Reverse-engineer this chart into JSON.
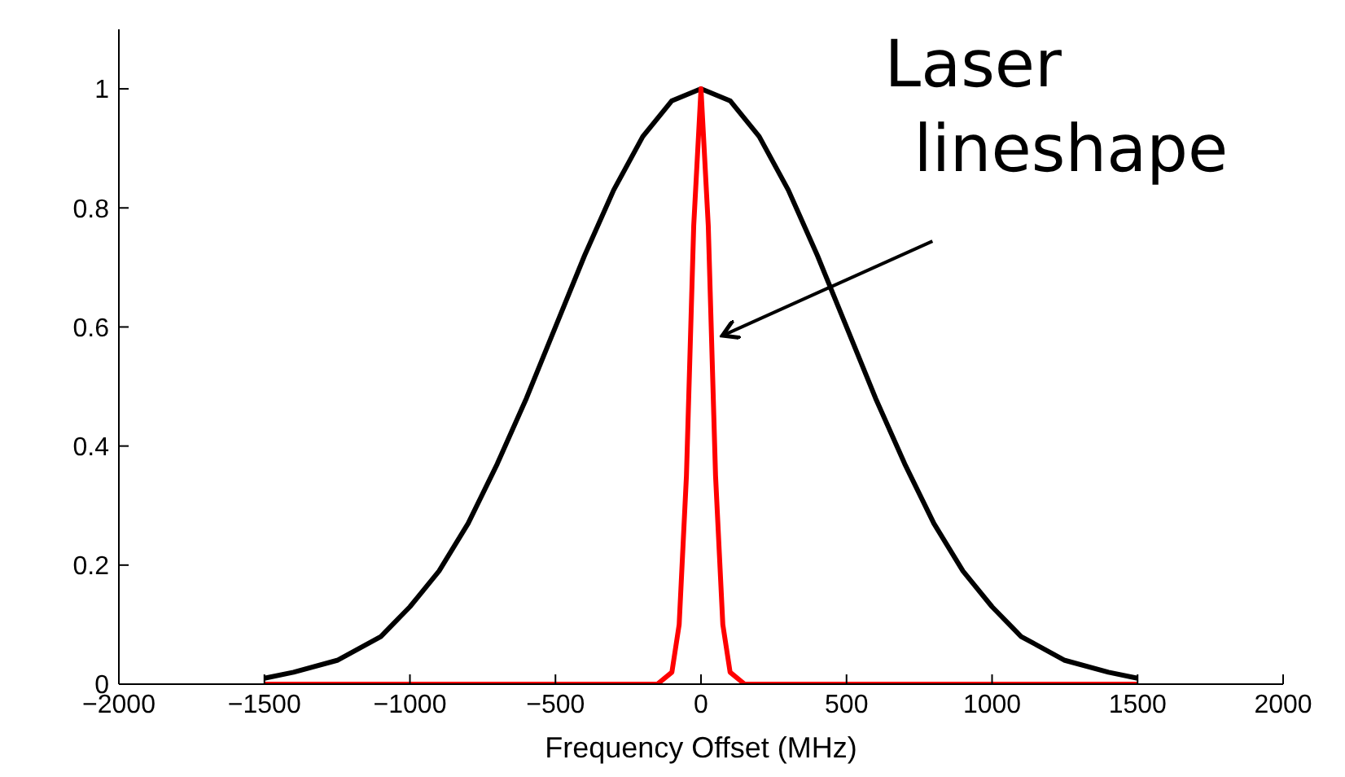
{
  "chart_data": {
    "type": "line",
    "xlabel": "Frequency Offset (MHz)",
    "xlim": [
      -2000,
      2000
    ],
    "xticks": [
      {
        "value": -2000,
        "label": "−2000"
      },
      {
        "value": -1500,
        "label": "−1500"
      },
      {
        "value": -1000,
        "label": "−1000"
      },
      {
        "value": -500,
        "label": "−500"
      },
      0,
      500,
      1000,
      1500,
      2000
    ],
    "ylim": [
      0,
      1.1
    ],
    "yticks": [
      0,
      0.2,
      0.4,
      0.6,
      0.8,
      1
    ],
    "grid": false,
    "legend": false,
    "marker": "none",
    "line_style": "solid",
    "series": [
      {
        "color": "#000000",
        "x": [
          -1500,
          -1400,
          -1250,
          -1100,
          -1000,
          -900,
          -800,
          -700,
          -600,
          -500,
          -400,
          -300,
          -200,
          -100,
          0,
          100,
          200,
          300,
          400,
          500,
          600,
          700,
          800,
          900,
          1000,
          1100,
          1250,
          1400,
          1500
        ],
        "values": [
          0.01,
          0.02,
          0.04,
          0.08,
          0.13,
          0.19,
          0.27,
          0.37,
          0.48,
          0.6,
          0.72,
          0.83,
          0.92,
          0.98,
          1,
          0.98,
          0.92,
          0.83,
          0.72,
          0.6,
          0.48,
          0.37,
          0.27,
          0.19,
          0.13,
          0.08,
          0.04,
          0.02,
          0.01
        ]
      },
      {
        "color": "#ff0000",
        "x": [
          -1500,
          -150,
          -100,
          -75,
          -50,
          -25,
          0,
          25,
          50,
          75,
          100,
          150,
          1500
        ],
        "values": [
          0,
          0,
          0.02,
          0.1,
          0.35,
          0.77,
          1,
          0.77,
          0.35,
          0.1,
          0.02,
          0,
          0
        ]
      }
    ],
    "annotations": [
      {
        "text": "Laser lineshape",
        "x": 40,
        "y": 0.58
      }
    ]
  }
}
